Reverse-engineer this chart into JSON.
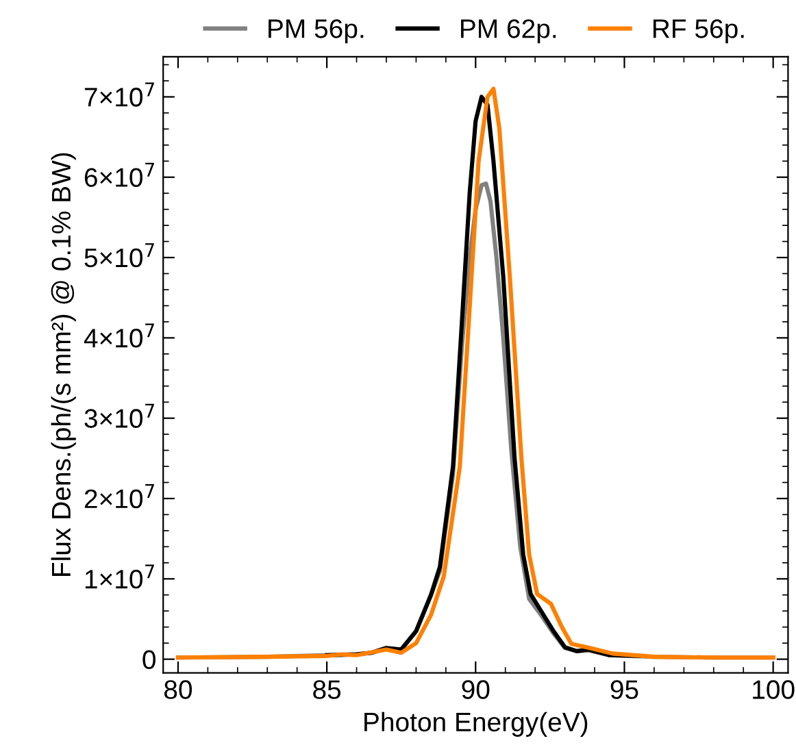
{
  "chart_data": {
    "type": "line",
    "xlabel": "Photon Energy(eV)",
    "ylabel": "Flux Dens.(ph/(s mm²) @ 0.1% BW)",
    "xlim": [
      79.5,
      100.5
    ],
    "xticks": [
      80,
      85,
      90,
      95,
      100
    ],
    "ylim": [
      -1700000,
      75000000
    ],
    "yticks": [
      0,
      {
        "value": 10000000,
        "label": "1×10$^{7}$"
      },
      {
        "value": 20000000,
        "label": "2×10$^{7}$"
      },
      {
        "value": 30000000,
        "label": "3×10$^{7}$"
      },
      {
        "value": 40000000,
        "label": "4×10$^{7}$"
      },
      {
        "value": 50000000,
        "label": "5×10$^{7}$"
      },
      {
        "value": 60000000,
        "label": "6×10$^{7}$"
      },
      {
        "value": 70000000,
        "label": "7×10$^{7}$"
      }
    ],
    "legend": "top",
    "grid": false,
    "line_style": "solid",
    "marker": "none",
    "series": [
      {
        "name": "PM 56p.",
        "color": "#808080",
        "x": [
          80,
          83,
          85,
          86,
          86.5,
          87,
          87.5,
          88,
          88.5,
          88.8,
          89.24,
          89.54,
          89.8,
          90.0,
          90.2,
          90.35,
          90.5,
          90.7,
          90.93,
          91.2,
          91.5,
          91.8,
          92.2,
          92.6,
          93.0,
          93.4,
          93.8,
          94.5,
          96,
          98,
          100
        ],
        "values": [
          200000,
          300000,
          500000,
          600000,
          800000,
          1300000,
          1200000,
          3500000,
          8000000,
          11000000,
          23000000,
          39000000,
          50000000,
          56000000,
          59000000,
          59200000,
          57000000,
          50000000,
          40000000,
          26000000,
          14000000,
          7500000,
          5500000,
          3300000,
          1400000,
          1000000,
          1100000,
          500000,
          300000,
          200000,
          200000
        ]
      },
      {
        "name": "PM 62p.",
        "color": "#000000",
        "x": [
          85,
          86,
          86.5,
          87,
          87.5,
          88,
          88.5,
          88.8,
          89.24,
          89.54,
          89.8,
          90.0,
          90.2,
          90.4,
          90.6,
          90.93,
          91.31,
          91.6,
          91.85,
          92.2,
          92.6,
          93.0,
          93.4,
          93.8,
          94.5,
          95.5
        ],
        "values": [
          500000,
          600000,
          800000,
          1400000,
          1200000,
          3500000,
          8000000,
          11500000,
          24000000,
          42000000,
          58000000,
          67000000,
          70000000,
          69000000,
          62000000,
          47600000,
          25000000,
          13000000,
          8100000,
          6000000,
          3600000,
          1500000,
          1000000,
          1200000,
          500000,
          400000
        ]
      },
      {
        "name": "RF 56p.",
        "color": "#ff8000",
        "x": [
          80,
          83,
          85,
          85.5,
          86,
          87,
          87.5,
          88,
          88.5,
          88.93,
          89.47,
          89.77,
          90.1,
          90.4,
          90.6,
          90.8,
          91.15,
          91.54,
          91.8,
          92.07,
          92.53,
          92.9,
          93.22,
          93.84,
          94.6,
          96,
          98,
          100
        ],
        "values": [
          200000,
          300000,
          400000,
          600000,
          500000,
          1200000,
          800000,
          2000000,
          5500000,
          10300000,
          24000000,
          42000000,
          62000000,
          70000000,
          71000000,
          66000000,
          47600000,
          25000000,
          13000000,
          8100000,
          6900000,
          4000000,
          1900000,
          1400000,
          700000,
          300000,
          200000,
          200000
        ]
      }
    ]
  }
}
